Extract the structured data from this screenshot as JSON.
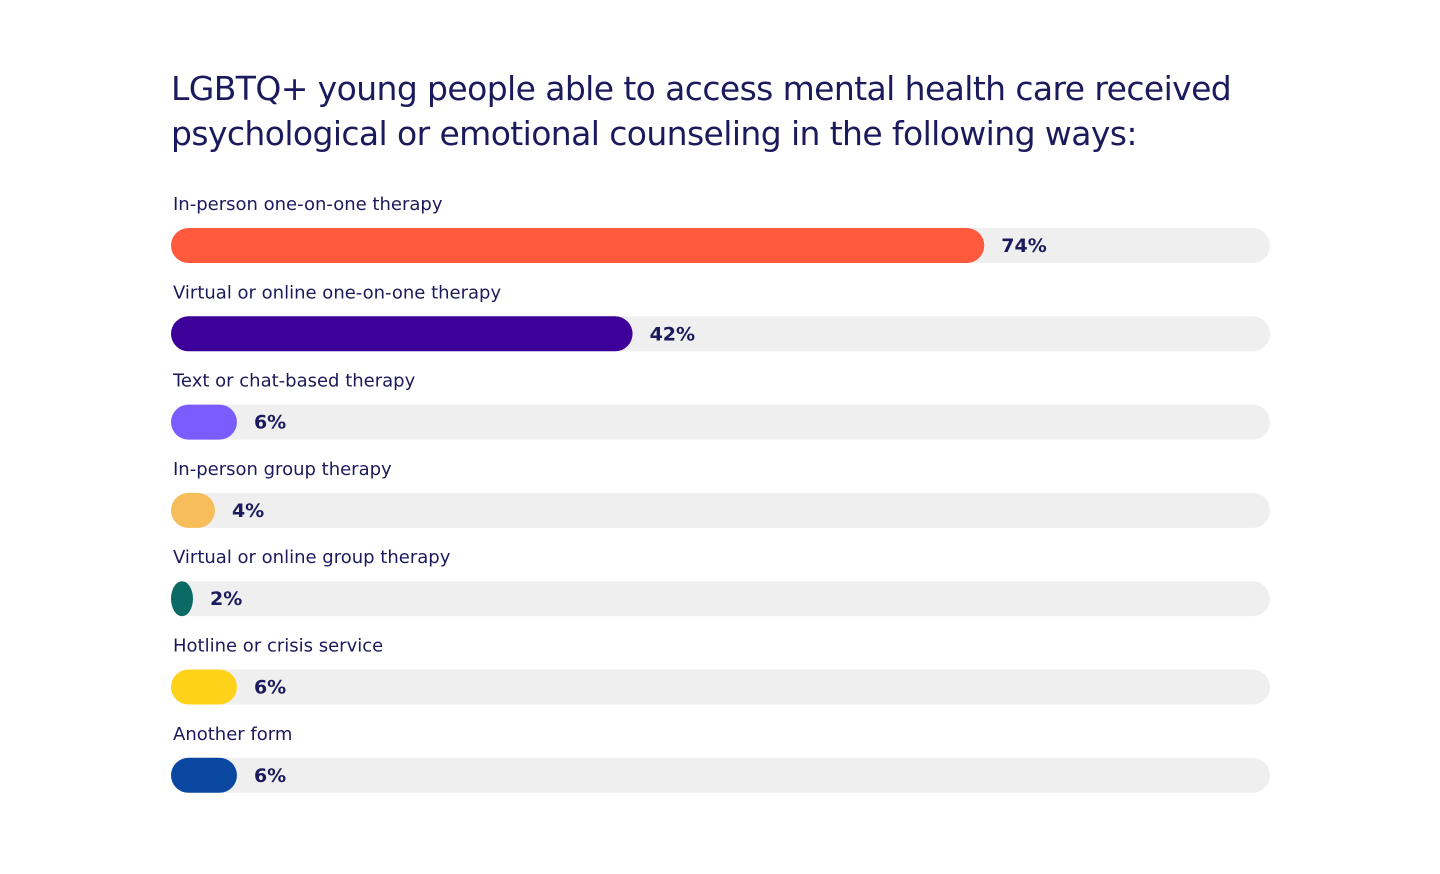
{
  "chart_data": {
    "type": "bar",
    "orientation": "horizontal",
    "title": "LGBTQ+ young people able to access mental health care received psychological or emotional counseling in the following ways:",
    "categories": [
      "In-person one-on-one therapy",
      "Virtual or online one-on-one therapy",
      "Text or chat-based therapy",
      "In-person group therapy",
      "Virtual or online group therapy",
      "Hotline or crisis service",
      "Another form"
    ],
    "values": [
      74,
      42,
      6,
      4,
      2,
      6,
      6
    ],
    "value_labels": [
      "74%",
      "42%",
      "6%",
      "4%",
      "2%",
      "6%",
      "6%"
    ],
    "colors": [
      "#ff5a3d",
      "#3d0099",
      "#7b5cff",
      "#f7bd5a",
      "#0b6b64",
      "#ffd21a",
      "#0a47a1"
    ],
    "track_color": "#efefef",
    "xlim": [
      0,
      100
    ]
  }
}
